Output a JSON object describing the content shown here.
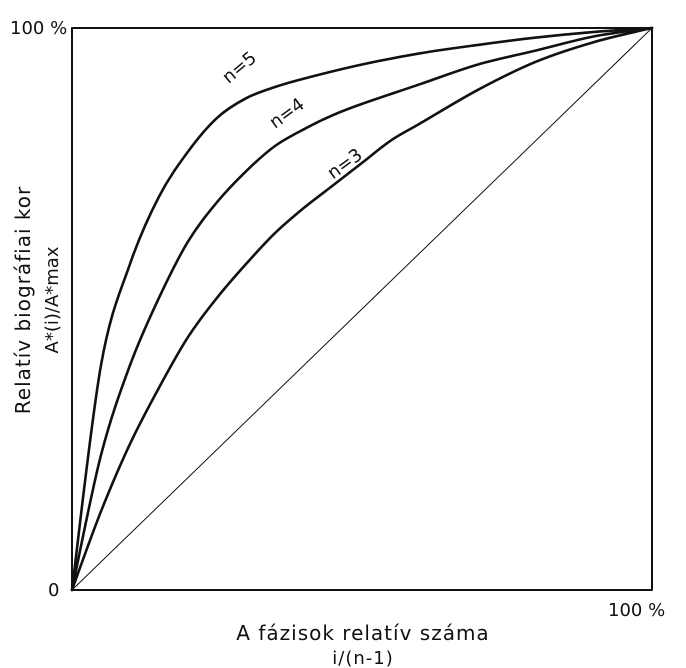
{
  "chart_data": {
    "type": "line",
    "xlabel": "A fázisok relatív száma",
    "xlabel_sub": "i/(n-1)",
    "ylabel": "Relatív biográfiai kor",
    "ylabel_sub": "A*(i)/A*max",
    "y_tick_top": "100 %",
    "x_tick_right": "100 %",
    "origin_label": "0",
    "xlim": [
      0,
      100
    ],
    "ylim": [
      0,
      100
    ],
    "grid": false,
    "series": [
      {
        "name": "n=5",
        "weight": 2.6,
        "x": [
          0,
          5,
          10,
          15,
          20,
          25,
          30,
          35,
          40,
          50,
          60,
          70,
          80,
          90,
          100
        ],
        "y": [
          0,
          40,
          58,
          70,
          78,
          84,
          87.5,
          89.5,
          91,
          93.5,
          95.5,
          97,
          98.3,
          99.3,
          100
        ]
      },
      {
        "name": "n=4",
        "weight": 2.6,
        "x": [
          0,
          5,
          10,
          15,
          20,
          25,
          30,
          35,
          40,
          45,
          50,
          60,
          70,
          80,
          90,
          100
        ],
        "y": [
          0,
          24,
          40,
          52,
          62,
          69,
          74.5,
          79,
          82,
          84.5,
          86.5,
          90,
          93.5,
          96,
          98.5,
          100
        ]
      },
      {
        "name": "n=3",
        "weight": 2.6,
        "x": [
          0,
          5,
          10,
          15,
          20,
          25,
          30,
          35,
          40,
          45,
          50,
          55,
          60,
          70,
          80,
          90,
          100
        ],
        "y": [
          0,
          14,
          26,
          36,
          45,
          52,
          58,
          63.5,
          68,
          72,
          76,
          80,
          83,
          89,
          94,
          97.5,
          100
        ]
      },
      {
        "name": "",
        "weight": 1.0,
        "x": [
          0,
          100
        ],
        "y": [
          0,
          100
        ]
      }
    ]
  }
}
